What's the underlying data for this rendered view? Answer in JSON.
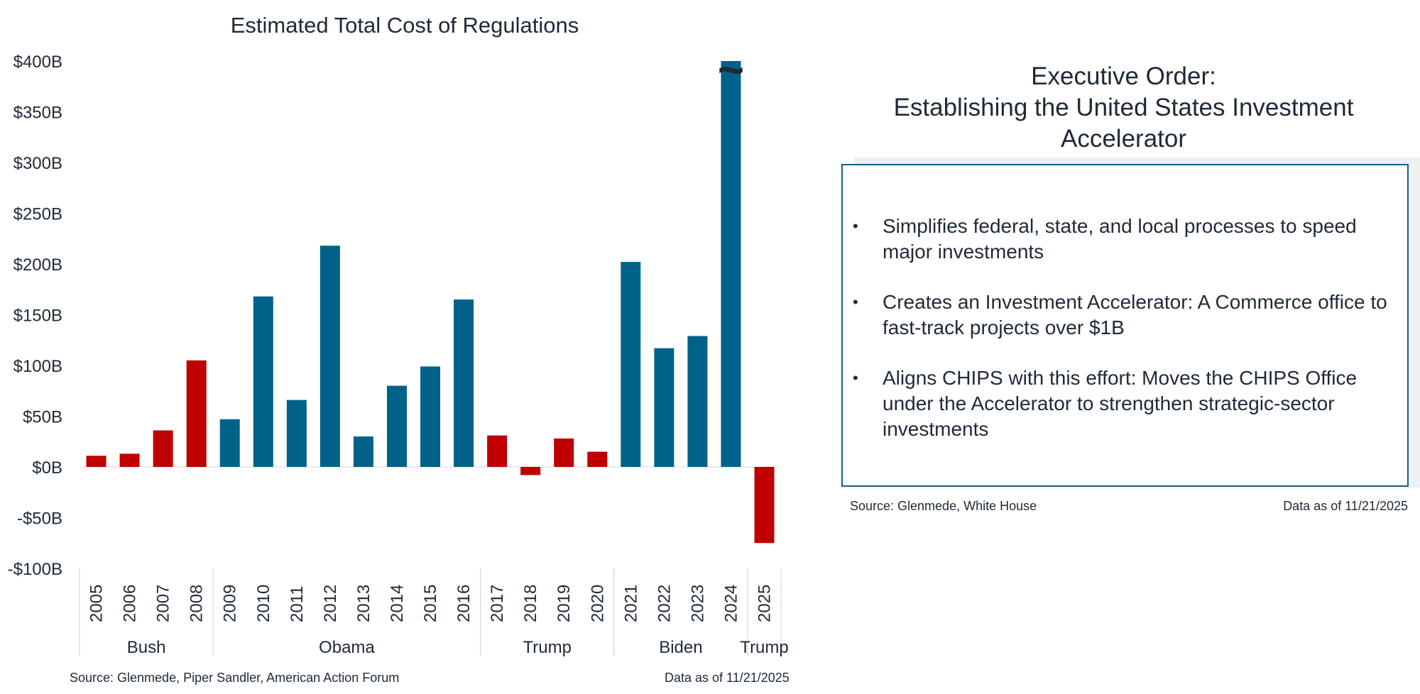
{
  "chart_data": {
    "type": "bar",
    "title": "Estimated Total Cost of Regulations",
    "categories": [
      "2005",
      "2006",
      "2007",
      "2008",
      "2009",
      "2010",
      "2011",
      "2012",
      "2013",
      "2014",
      "2015",
      "2016",
      "2017",
      "2018",
      "2019",
      "2020",
      "2021",
      "2022",
      "2023",
      "2024",
      "2025"
    ],
    "values": [
      11,
      13,
      36,
      105,
      47,
      168,
      66,
      218,
      30,
      80,
      99,
      165,
      31,
      -8,
      28,
      15,
      202,
      117,
      129,
      400,
      -75
    ],
    "bar_colors": [
      "#c00000",
      "#c00000",
      "#c00000",
      "#c00000",
      "#006288",
      "#006288",
      "#006288",
      "#006288",
      "#006288",
      "#006288",
      "#006288",
      "#006288",
      "#c00000",
      "#c00000",
      "#c00000",
      "#c00000",
      "#006288",
      "#006288",
      "#006288",
      "#006288",
      "#c00000"
    ],
    "y_ticks": [
      400,
      350,
      300,
      250,
      200,
      150,
      100,
      50,
      0,
      -50,
      -100
    ],
    "y_tick_labels": [
      "$400B",
      "$350B",
      "$300B",
      "$250B",
      "$200B",
      "$150B",
      "$100B",
      "$50B",
      "$0B",
      "-$50B",
      "-$100B"
    ],
    "ylim": [
      -100,
      400
    ],
    "xlabel": "",
    "ylabel": "",
    "grid": false,
    "truncated_bar_marker": "~",
    "administrations": [
      {
        "name": "Bush",
        "start": 0,
        "end": 3
      },
      {
        "name": "Obama",
        "start": 4,
        "end": 11
      },
      {
        "name": "Trump",
        "start": 12,
        "end": 15
      },
      {
        "name": "Biden",
        "start": 16,
        "end": 19
      },
      {
        "name": "Trump",
        "start": 20,
        "end": 20
      }
    ]
  },
  "chart_footer": {
    "source": "Source: Glenmede, Piper Sandler, American Action Forum",
    "date": "Data as of 11/21/2025"
  },
  "executive_order": {
    "title_lines": [
      "Executive Order:",
      "Establishing the United States Investment",
      "Accelerator"
    ],
    "bullet_symbol": "•",
    "bullets": [
      "Simplifies federal, state, and local processes to speed major investments",
      "Creates an Investment Accelerator: A Commerce office to fast-track projects over $1B",
      "Aligns CHIPS with this effort: Moves the CHIPS Office under the Accelerator to strengthen strategic-sector investments"
    ],
    "source": "Source: Glenmede, White House",
    "date": "Data as of 11/21/2025",
    "border_color": "#1c5d85"
  }
}
